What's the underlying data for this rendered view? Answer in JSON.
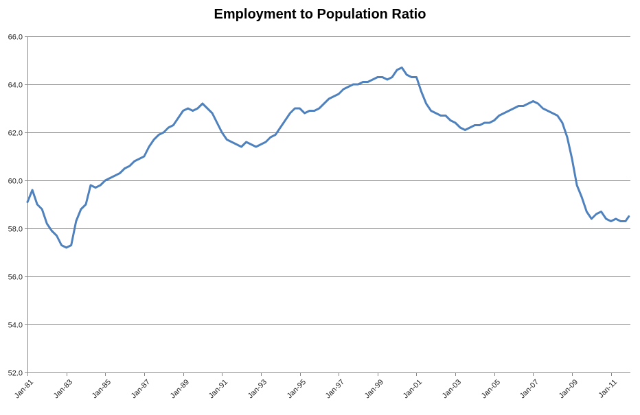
{
  "chart_data": {
    "type": "line",
    "title": "Employment to Population Ratio",
    "xlabel": "",
    "ylabel": "",
    "ylim": [
      52.0,
      66.0
    ],
    "y_ticks": [
      52.0,
      54.0,
      56.0,
      58.0,
      60.0,
      62.0,
      64.0,
      66.0
    ],
    "y_tick_labels": [
      "52.0",
      "54.0",
      "56.0",
      "58.0",
      "60.0",
      "62.0",
      "64.0",
      "66.0"
    ],
    "x_range": [
      1981.0,
      2012.0
    ],
    "x_ticks": [
      1981,
      1983,
      1985,
      1987,
      1989,
      1991,
      1993,
      1995,
      1997,
      1999,
      2001,
      2003,
      2005,
      2007,
      2009,
      2011
    ],
    "x_tick_labels": [
      "Jan-81",
      "Jan-83",
      "Jan-85",
      "Jan-87",
      "Jan-89",
      "Jan-91",
      "Jan-93",
      "Jan-95",
      "Jan-97",
      "Jan-99",
      "Jan-01",
      "Jan-03",
      "Jan-05",
      "Jan-07",
      "Jan-09",
      "Jan-11"
    ],
    "grid": true,
    "legend": "none",
    "line_color": "#4F81BD",
    "grid_color": "#868686",
    "axis_color": "#868686",
    "series": [
      {
        "name": "Employment to Population Ratio",
        "x": [
          1981.0,
          1981.25,
          1981.5,
          1981.75,
          1982.0,
          1982.25,
          1982.5,
          1982.75,
          1983.0,
          1983.25,
          1983.5,
          1983.75,
          1984.0,
          1984.25,
          1984.5,
          1984.75,
          1985.0,
          1985.25,
          1985.5,
          1985.75,
          1986.0,
          1986.25,
          1986.5,
          1986.75,
          1987.0,
          1987.25,
          1987.5,
          1987.75,
          1988.0,
          1988.25,
          1988.5,
          1988.75,
          1989.0,
          1989.25,
          1989.5,
          1989.75,
          1990.0,
          1990.25,
          1990.5,
          1990.75,
          1991.0,
          1991.25,
          1991.5,
          1991.75,
          1992.0,
          1992.25,
          1992.5,
          1992.75,
          1993.0,
          1993.25,
          1993.5,
          1993.75,
          1994.0,
          1994.25,
          1994.5,
          1994.75,
          1995.0,
          1995.25,
          1995.5,
          1995.75,
          1996.0,
          1996.25,
          1996.5,
          1996.75,
          1997.0,
          1997.25,
          1997.5,
          1997.75,
          1998.0,
          1998.25,
          1998.5,
          1998.75,
          1999.0,
          1999.25,
          1999.5,
          1999.75,
          2000.0,
          2000.25,
          2000.5,
          2000.75,
          2001.0,
          2001.25,
          2001.5,
          2001.75,
          2002.0,
          2002.25,
          2002.5,
          2002.75,
          2003.0,
          2003.25,
          2003.5,
          2003.75,
          2004.0,
          2004.25,
          2004.5,
          2004.75,
          2005.0,
          2005.25,
          2005.5,
          2005.75,
          2006.0,
          2006.25,
          2006.5,
          2006.75,
          2007.0,
          2007.25,
          2007.5,
          2007.75,
          2008.0,
          2008.25,
          2008.5,
          2008.75,
          2009.0,
          2009.25,
          2009.5,
          2009.75,
          2010.0,
          2010.25,
          2010.5,
          2010.75,
          2011.0,
          2011.25,
          2011.5,
          2011.75,
          2011.92
        ],
        "values": [
          59.1,
          59.6,
          59.0,
          58.8,
          58.2,
          57.9,
          57.7,
          57.3,
          57.2,
          57.3,
          58.3,
          58.8,
          59.0,
          59.8,
          59.7,
          59.8,
          60.0,
          60.1,
          60.2,
          60.3,
          60.5,
          60.6,
          60.8,
          60.9,
          61.0,
          61.4,
          61.7,
          61.9,
          62.0,
          62.2,
          62.3,
          62.6,
          62.9,
          63.0,
          62.9,
          63.0,
          63.2,
          63.0,
          62.8,
          62.4,
          62.0,
          61.7,
          61.6,
          61.5,
          61.4,
          61.6,
          61.5,
          61.4,
          61.5,
          61.6,
          61.8,
          61.9,
          62.2,
          62.5,
          62.8,
          63.0,
          63.0,
          62.8,
          62.9,
          62.9,
          63.0,
          63.2,
          63.4,
          63.5,
          63.6,
          63.8,
          63.9,
          64.0,
          64.0,
          64.1,
          64.1,
          64.2,
          64.3,
          64.3,
          64.2,
          64.3,
          64.6,
          64.7,
          64.4,
          64.3,
          64.3,
          63.7,
          63.2,
          62.9,
          62.8,
          62.7,
          62.7,
          62.5,
          62.4,
          62.2,
          62.1,
          62.2,
          62.3,
          62.3,
          62.4,
          62.4,
          62.5,
          62.7,
          62.8,
          62.9,
          63.0,
          63.1,
          63.1,
          63.2,
          63.3,
          63.2,
          63.0,
          62.9,
          62.8,
          62.7,
          62.4,
          61.8,
          60.9,
          59.8,
          59.3,
          58.7,
          58.4,
          58.6,
          58.7,
          58.4,
          58.3,
          58.4,
          58.3,
          58.3,
          58.5
        ]
      }
    ]
  }
}
